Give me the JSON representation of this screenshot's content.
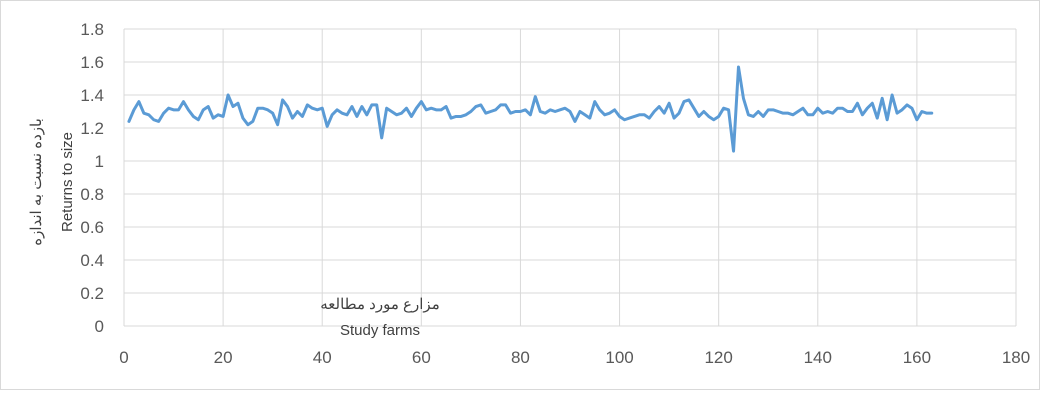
{
  "chart_data": {
    "type": "line",
    "title": "",
    "xlabel_fa": "مزارع مورد مطالعه",
    "xlabel_en": "Study farms",
    "ylabel_fa": "بازده نسبت به اندازه",
    "ylabel_en": "Returns to size",
    "xlim": [
      0,
      180
    ],
    "ylim": [
      0,
      1.8
    ],
    "x_ticks": [
      "0",
      "20",
      "40",
      "60",
      "80",
      "100",
      "120",
      "140",
      "160",
      "180"
    ],
    "y_ticks": [
      "0",
      "0.2",
      "0.4",
      "0.6",
      "0.8",
      "1",
      "1.2",
      "1.4",
      "1.6",
      "1.8"
    ],
    "grid": true,
    "legend": "none",
    "line_color": "#5b9bd5",
    "series": [
      {
        "x_start": 1,
        "values": [
          1.24,
          1.31,
          1.36,
          1.29,
          1.28,
          1.25,
          1.24,
          1.29,
          1.32,
          1.31,
          1.31,
          1.36,
          1.31,
          1.27,
          1.25,
          1.31,
          1.33,
          1.26,
          1.28,
          1.27,
          1.4,
          1.33,
          1.35,
          1.26,
          1.22,
          1.24,
          1.32,
          1.32,
          1.31,
          1.29,
          1.22,
          1.37,
          1.33,
          1.26,
          1.3,
          1.27,
          1.34,
          1.32,
          1.31,
          1.32,
          1.21,
          1.28,
          1.31,
          1.29,
          1.28,
          1.33,
          1.27,
          1.33,
          1.28,
          1.34,
          1.34,
          1.14,
          1.32,
          1.3,
          1.28,
          1.29,
          1.32,
          1.27,
          1.32,
          1.36,
          1.31,
          1.32,
          1.31,
          1.31,
          1.33,
          1.26,
          1.27,
          1.27,
          1.28,
          1.3,
          1.33,
          1.34,
          1.29,
          1.3,
          1.31,
          1.34,
          1.34,
          1.29,
          1.3,
          1.3,
          1.31,
          1.28,
          1.39,
          1.3,
          1.29,
          1.31,
          1.3,
          1.31,
          1.32,
          1.3,
          1.24,
          1.3,
          1.28,
          1.26,
          1.36,
          1.31,
          1.28,
          1.29,
          1.31,
          1.27,
          1.25,
          1.26,
          1.27,
          1.28,
          1.28,
          1.26,
          1.3,
          1.33,
          1.29,
          1.35,
          1.26,
          1.29,
          1.36,
          1.37,
          1.32,
          1.27,
          1.3,
          1.27,
          1.25,
          1.27,
          1.32,
          1.31,
          1.06,
          1.57,
          1.38,
          1.28,
          1.27,
          1.3,
          1.27,
          1.31,
          1.31,
          1.3,
          1.29,
          1.29,
          1.28,
          1.3,
          1.32,
          1.28,
          1.28,
          1.32,
          1.29,
          1.3,
          1.29,
          1.32,
          1.32,
          1.3,
          1.3,
          1.35,
          1.28,
          1.32,
          1.35,
          1.26,
          1.38,
          1.25,
          1.4,
          1.29,
          1.31,
          1.34,
          1.32,
          1.25,
          1.3,
          1.29,
          1.29
        ]
      }
    ]
  }
}
